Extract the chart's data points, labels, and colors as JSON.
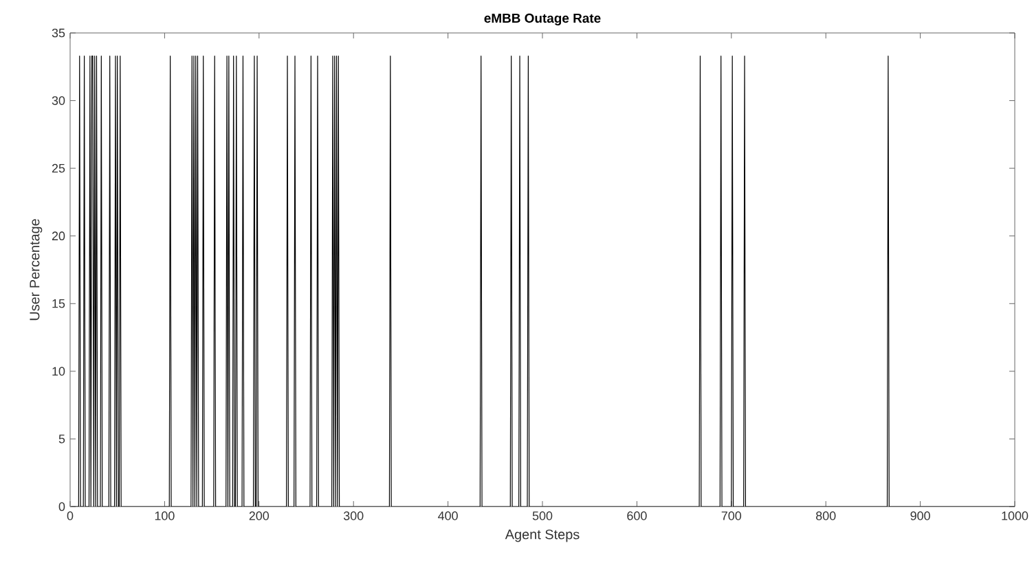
{
  "chart_data": {
    "type": "line",
    "title": "eMBB Outage Rate",
    "xlabel": "Agent Steps",
    "ylabel": "User Percentage",
    "xlim": [
      0,
      1000
    ],
    "xticks": [
      0,
      100,
      200,
      300,
      400,
      500,
      600,
      700,
      800,
      900,
      1000
    ],
    "ylim": [
      0,
      35
    ],
    "yticks": [
      0,
      5,
      10,
      15,
      20,
      25,
      30,
      35
    ],
    "grid": false,
    "marker": "none",
    "line_style": "solid",
    "series": [
      {
        "color": "#000000",
        "x": [
          1,
          9,
          10,
          11,
          14,
          15,
          16,
          20,
          21,
          22,
          23,
          24,
          25,
          26,
          27,
          28,
          29,
          32,
          33,
          34,
          41,
          42,
          43,
          47,
          48,
          49,
          50,
          51,
          52,
          53,
          54,
          105,
          106,
          107,
          128,
          129,
          130,
          131,
          132,
          133,
          134,
          135,
          136,
          140,
          141,
          142,
          152,
          153,
          154,
          165,
          166,
          167,
          168,
          169,
          172,
          173,
          174,
          175,
          176,
          177,
          182,
          183,
          184,
          194,
          195,
          196,
          197,
          198,
          199,
          229,
          230,
          231,
          237,
          238,
          239,
          254,
          255,
          256,
          261,
          262,
          263,
          277,
          278,
          279,
          280,
          281,
          282,
          283,
          284,
          285,
          338,
          339,
          340,
          434,
          435,
          436,
          466,
          467,
          468,
          475,
          476,
          477,
          484,
          485,
          486,
          666,
          667,
          668,
          688,
          689,
          690,
          700,
          701,
          702,
          713,
          714,
          715,
          865,
          866,
          867,
          1000
        ],
        "values": [
          0,
          0,
          33.3,
          0,
          0,
          33.3,
          0,
          0,
          33.3,
          0,
          33.3,
          33.3,
          0,
          33.3,
          0,
          33.3,
          0,
          0,
          33.3,
          0,
          0,
          33.3,
          0,
          0,
          33.3,
          0,
          33.3,
          0,
          0,
          33.3,
          0,
          0,
          33.3,
          0,
          0,
          33.3,
          0,
          33.3,
          0,
          33.3,
          0,
          33.3,
          0,
          0,
          33.3,
          0,
          0,
          33.3,
          0,
          0,
          33.3,
          0,
          33.3,
          0,
          0,
          33.3,
          0,
          0,
          33.3,
          0,
          0,
          33.3,
          0,
          0,
          33.3,
          0,
          0,
          33.3,
          0,
          0,
          33.3,
          0,
          0,
          33.3,
          0,
          0,
          33.3,
          0,
          0,
          33.3,
          0,
          0,
          33.3,
          0,
          33.3,
          0,
          33.3,
          0,
          33.3,
          0,
          0,
          33.3,
          0,
          0,
          33.3,
          0,
          0,
          33.3,
          0,
          0,
          33.3,
          0,
          0,
          33.3,
          0,
          0,
          33.3,
          0,
          0,
          33.3,
          0,
          0,
          33.3,
          0,
          0,
          33.3,
          0,
          0,
          33.3,
          0,
          0
        ]
      }
    ]
  }
}
